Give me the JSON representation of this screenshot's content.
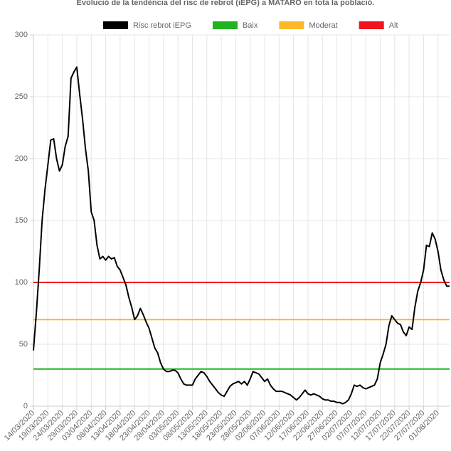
{
  "chart_data": {
    "type": "line",
    "title": "Evolució de la tendència del risc de rebrot (iEPG) a MATARÓ en tota la població.",
    "categories": [
      "14/03/2020",
      null,
      null,
      null,
      null,
      "19/03/2020",
      null,
      null,
      null,
      null,
      "24/03/2020",
      null,
      null,
      null,
      null,
      "29/03/2020",
      null,
      null,
      null,
      null,
      "03/04/2020",
      null,
      null,
      null,
      null,
      "08/04/2020",
      null,
      null,
      null,
      null,
      "13/04/2020",
      null,
      null,
      null,
      null,
      "18/04/2020",
      null,
      null,
      null,
      null,
      "23/04/2020",
      null,
      null,
      null,
      null,
      "28/04/2020",
      null,
      null,
      null,
      null,
      "03/05/2020",
      null,
      null,
      null,
      null,
      "08/05/2020",
      null,
      null,
      null,
      null,
      "13/05/2020",
      null,
      null,
      null,
      null,
      "18/05/2020",
      null,
      null,
      null,
      null,
      "23/05/2020",
      null,
      null,
      null,
      null,
      "28/05/2020",
      null,
      null,
      null,
      null,
      "02/06/2020",
      null,
      null,
      null,
      null,
      "07/06/2020",
      null,
      null,
      null,
      null,
      "12/06/2020",
      null,
      null,
      null,
      null,
      "17/06/2020",
      null,
      null,
      null,
      null,
      "22/06/2020",
      null,
      null,
      null,
      null,
      "27/06/2020",
      null,
      null,
      null,
      null,
      "02/07/2020",
      null,
      null,
      null,
      null,
      "07/07/2020",
      null,
      null,
      null,
      null,
      "12/07/2020",
      null,
      null,
      null,
      null,
      "17/07/2020",
      null,
      null,
      null,
      null,
      "22/07/2020",
      null,
      null,
      null,
      null,
      "27/07/2020",
      null,
      null,
      null,
      null,
      "01/08/2020",
      null,
      null,
      null,
      null
    ],
    "series": [
      {
        "name": "Risc rebrot iEPG",
        "color": "#000000",
        "values": [
          45,
          75,
          110,
          150,
          175,
          195,
          215,
          216,
          200,
          190,
          195,
          210,
          218,
          265,
          270,
          274,
          252,
          232,
          208,
          190,
          157,
          150,
          130,
          119,
          121,
          118,
          121,
          119,
          120,
          113,
          110,
          104,
          98,
          88,
          80,
          70,
          73,
          79,
          74,
          68,
          63,
          55,
          47,
          43,
          35,
          30,
          28,
          28,
          29,
          29,
          27,
          22,
          18,
          17,
          17,
          17,
          22,
          25,
          28,
          27,
          24,
          20,
          17,
          14,
          11,
          9,
          8,
          12,
          16,
          18,
          19,
          20,
          18,
          20,
          17,
          22,
          28,
          27,
          26,
          23,
          20,
          22,
          17,
          14,
          12,
          12,
          12,
          11,
          10,
          9,
          7,
          5,
          7,
          10,
          13,
          10,
          9,
          10,
          9,
          8,
          6,
          5,
          5,
          4,
          4,
          3,
          3,
          2,
          3,
          5,
          10,
          17,
          16,
          17,
          15,
          14,
          15,
          16,
          17,
          22,
          35,
          42,
          50,
          65,
          73,
          70,
          67,
          66,
          60,
          57,
          64,
          62,
          80,
          93,
          100,
          110,
          130,
          129,
          140,
          135,
          125,
          110,
          102,
          97,
          97
        ]
      }
    ],
    "reference_lines": [
      {
        "name": "Baix",
        "color": "#1fb41f",
        "value": 30
      },
      {
        "name": "Moderat",
        "color": "#fbb928",
        "value": 70
      },
      {
        "name": "Alt",
        "color": "#f0141e",
        "value": 100
      }
    ],
    "ylim": [
      0,
      300
    ],
    "yticks": [
      0,
      50,
      100,
      150,
      200,
      250,
      300
    ],
    "grid": true
  }
}
